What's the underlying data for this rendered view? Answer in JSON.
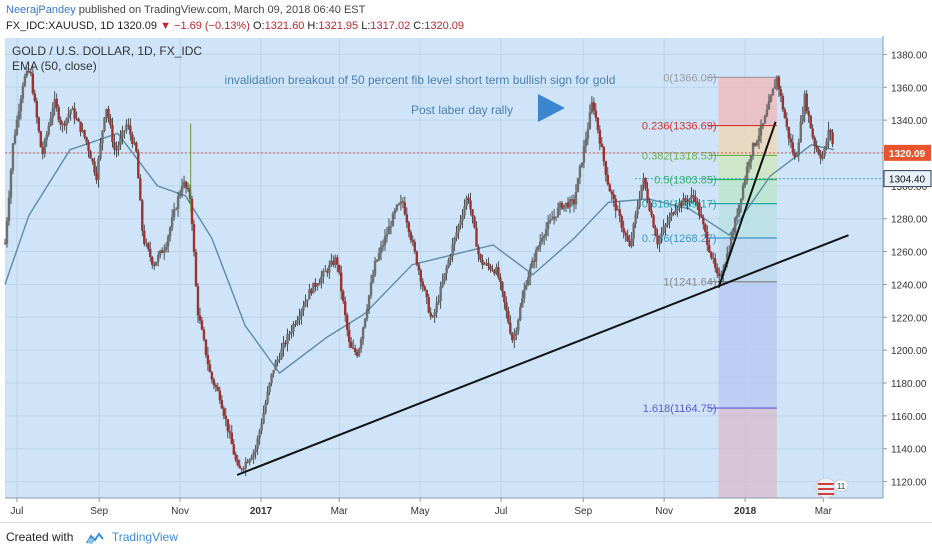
{
  "header": {
    "author": "NeerajPandey",
    "published": "published on TradingView.com, March 09, 2018 06:40 EST",
    "symbol": "FX_IDC:XAUUSD, 1D",
    "last": "1320.09",
    "change": "−1.69 (−0.13%)",
    "o_label": "O:",
    "o": "1321.60",
    "h_label": "H:",
    "h": "1321.95",
    "l_label": "L:",
    "l": "1317.02",
    "c_label": "C:",
    "c": "1320.09"
  },
  "footer": {
    "created_with": "Created with",
    "brand": "TradingView"
  },
  "colors": {
    "background": "#cfe4f8",
    "candle": "#2c2c2c",
    "ema": "#5d8aa8",
    "trendline": "#111111",
    "fib_1618": "#5a5ad8",
    "fib_0236": "#d23232",
    "price_badge": "#e8542e",
    "level_badge": "#e9f1fa"
  },
  "chart_data": {
    "type": "line",
    "title": "GOLD / U.S. DOLLAR, 1D, FX_IDC",
    "indicator": "EMA (50, close)",
    "ylim": [
      1110,
      1390
    ],
    "xlim": [
      "2016-06-22",
      "2018-04-15"
    ],
    "y_ticks": [
      "1120.00",
      "1140.00",
      "1160.00",
      "1180.00",
      "1200.00",
      "1220.00",
      "1240.00",
      "1260.00",
      "1280.00",
      "1300.00",
      "1320.00",
      "1340.00",
      "1360.00",
      "1380.00"
    ],
    "x_ticks": [
      {
        "label": "Jul",
        "date": "2016-07-01",
        "bold": false
      },
      {
        "label": "Sep",
        "date": "2016-09-01",
        "bold": false
      },
      {
        "label": "Nov",
        "date": "2016-11-01",
        "bold": false
      },
      {
        "label": "2017",
        "date": "2017-01-01",
        "bold": true
      },
      {
        "label": "Mar",
        "date": "2017-03-01",
        "bold": false
      },
      {
        "label": "May",
        "date": "2017-05-01",
        "bold": false
      },
      {
        "label": "Jul",
        "date": "2017-07-01",
        "bold": false
      },
      {
        "label": "Sep",
        "date": "2017-09-01",
        "bold": false
      },
      {
        "label": "Nov",
        "date": "2017-11-01",
        "bold": false
      },
      {
        "label": "2018",
        "date": "2018-01-01",
        "bold": true
      },
      {
        "label": "Mar",
        "date": "2018-03-01",
        "bold": false
      }
    ],
    "price_path": [
      [
        "2016-06-22",
        1265
      ],
      [
        "2016-06-28",
        1325
      ],
      [
        "2016-07-06",
        1365
      ],
      [
        "2016-07-11",
        1370
      ],
      [
        "2016-07-20",
        1318
      ],
      [
        "2016-07-29",
        1352
      ],
      [
        "2016-08-04",
        1336
      ],
      [
        "2016-08-11",
        1347
      ],
      [
        "2016-08-22",
        1328
      ],
      [
        "2016-08-30",
        1306
      ],
      [
        "2016-09-06",
        1350
      ],
      [
        "2016-09-13",
        1320
      ],
      [
        "2016-09-22",
        1338
      ],
      [
        "2016-09-29",
        1320
      ],
      [
        "2016-10-04",
        1268
      ],
      [
        "2016-10-12",
        1252
      ],
      [
        "2016-10-21",
        1264
      ],
      [
        "2016-11-03",
        1303
      ],
      [
        "2016-11-09",
        1292
      ],
      [
        "2016-11-14",
        1225
      ],
      [
        "2016-11-24",
        1184
      ],
      [
        "2016-12-01",
        1172
      ],
      [
        "2016-12-15",
        1126
      ],
      [
        "2016-12-28",
        1140
      ],
      [
        "2017-01-10",
        1188
      ],
      [
        "2017-01-24",
        1213
      ],
      [
        "2017-02-07",
        1236
      ],
      [
        "2017-02-27",
        1256
      ],
      [
        "2017-03-09",
        1201
      ],
      [
        "2017-03-15",
        1198
      ],
      [
        "2017-03-28",
        1252
      ],
      [
        "2017-04-13",
        1286
      ],
      [
        "2017-04-18",
        1290
      ],
      [
        "2017-04-26",
        1262
      ],
      [
        "2017-05-10",
        1217
      ],
      [
        "2017-05-25",
        1262
      ],
      [
        "2017-06-06",
        1295
      ],
      [
        "2017-06-15",
        1254
      ],
      [
        "2017-06-28",
        1248
      ],
      [
        "2017-07-10",
        1205
      ],
      [
        "2017-07-20",
        1242
      ],
      [
        "2017-08-01",
        1270
      ],
      [
        "2017-08-15",
        1288
      ],
      [
        "2017-08-25",
        1290
      ],
      [
        "2017-09-05",
        1338
      ],
      [
        "2017-09-08",
        1352
      ],
      [
        "2017-09-20",
        1300
      ],
      [
        "2017-10-06",
        1262
      ],
      [
        "2017-10-16",
        1305
      ],
      [
        "2017-10-27",
        1266
      ],
      [
        "2017-11-10",
        1288
      ],
      [
        "2017-11-24",
        1294
      ],
      [
        "2017-12-12",
        1241.64
      ],
      [
        "2017-12-20",
        1262
      ],
      [
        "2018-01-05",
        1320
      ],
      [
        "2018-01-15",
        1338
      ],
      [
        "2018-01-25",
        1366.06
      ],
      [
        "2018-02-02",
        1333
      ],
      [
        "2018-02-08",
        1315
      ],
      [
        "2018-02-15",
        1354
      ],
      [
        "2018-02-22",
        1326
      ],
      [
        "2018-02-28",
        1317
      ],
      [
        "2018-03-02",
        1322
      ],
      [
        "2018-03-06",
        1336
      ],
      [
        "2018-03-09",
        1320.09
      ]
    ],
    "ema_path": [
      [
        "2016-06-22",
        1240
      ],
      [
        "2016-07-10",
        1282
      ],
      [
        "2016-08-10",
        1322
      ],
      [
        "2016-09-15",
        1332
      ],
      [
        "2016-10-15",
        1300
      ],
      [
        "2016-11-05",
        1294
      ],
      [
        "2016-11-25",
        1268
      ],
      [
        "2016-12-20",
        1215
      ],
      [
        "2017-01-15",
        1186
      ],
      [
        "2017-02-20",
        1208
      ],
      [
        "2017-03-20",
        1222
      ],
      [
        "2017-04-25",
        1252
      ],
      [
        "2017-05-25",
        1258
      ],
      [
        "2017-06-25",
        1264
      ],
      [
        "2017-07-25",
        1246
      ],
      [
        "2017-08-25",
        1268
      ],
      [
        "2017-09-20",
        1290
      ],
      [
        "2017-10-20",
        1292
      ],
      [
        "2017-11-20",
        1286
      ],
      [
        "2017-12-20",
        1270
      ],
      [
        "2018-01-20",
        1306
      ],
      [
        "2018-02-20",
        1325
      ],
      [
        "2018-03-09",
        1322
      ]
    ],
    "trendlines": [
      {
        "from": [
          "2016-12-14",
          1124
        ],
        "to": [
          "2018-03-20",
          1270
        ]
      },
      {
        "from": [
          "2017-12-12",
          1238
        ],
        "to": [
          "2018-01-24",
          1339
        ]
      }
    ],
    "current_price_line": 1320.09,
    "dotted_level": 1304.4,
    "fibonacci": {
      "x_start": "2017-12-12",
      "x_end": "2018-01-25",
      "levels": [
        {
          "ratio": "0",
          "value": 1366.06,
          "label": "0(1366.06)",
          "color": "#9a9a9a"
        },
        {
          "ratio": "0.236",
          "value": 1336.69,
          "label": "0.236(1336.69)",
          "color": "#d23232"
        },
        {
          "ratio": "0.382",
          "value": 1318.53,
          "label": "0.382(1318.53)",
          "color": "#6ab04c"
        },
        {
          "ratio": "0.5",
          "value": 1303.85,
          "label": "0.5(1303.85)",
          "color": "#2fb061"
        },
        {
          "ratio": "0.618",
          "value": 1289.17,
          "label": "0.618(1289.17)",
          "color": "#23a8a8"
        },
        {
          "ratio": "0.786",
          "value": 1268.27,
          "label": "0.786(1268.27)",
          "color": "#3d94c9"
        },
        {
          "ratio": "1",
          "value": 1241.64,
          "label": "1(1241.64)",
          "color": "#888888"
        },
        {
          "ratio": "1.618",
          "value": 1164.75,
          "label": "1.618(1164.75)",
          "color": "#5a5ad8"
        }
      ]
    },
    "annotations": {
      "fib_note": "invalidation breakout of 50 percent fib level short term bullish sign for gold",
      "rally_note": "Post laber day rally"
    },
    "price_label": "1320.09",
    "level_label": "1304.40",
    "flag_badge": "11"
  }
}
